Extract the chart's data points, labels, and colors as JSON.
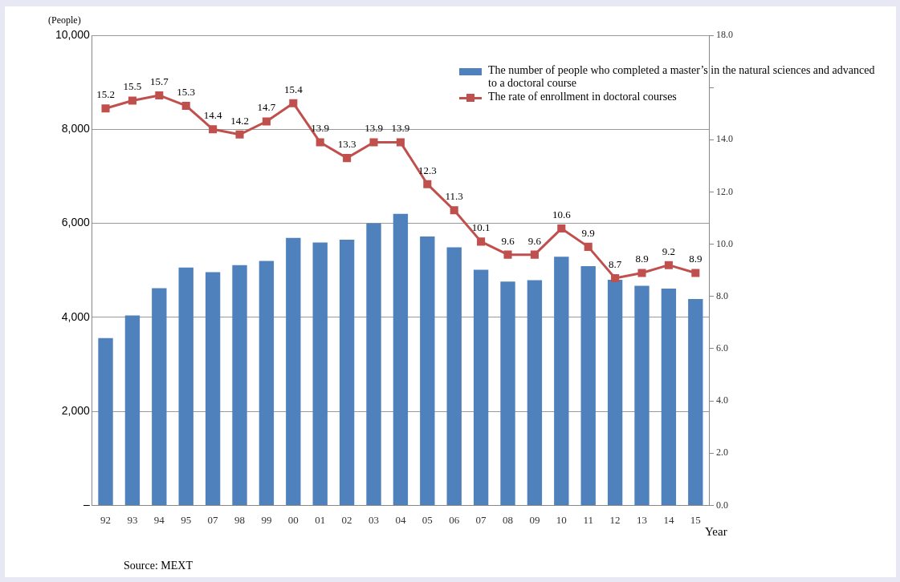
{
  "chart_data": {
    "type": "bar",
    "ylabel": "(People)",
    "xlabel": "Year",
    "categories": [
      "92",
      "93",
      "94",
      "95",
      "07",
      "98",
      "99",
      "00",
      "01",
      "02",
      "03",
      "04",
      "05",
      "06",
      "07",
      "08",
      "09",
      "10",
      "11",
      "12",
      "13",
      "14",
      "15"
    ],
    "series": [
      {
        "name": "The number of people who completed a master’s in the natural sciences and advanced to a doctoral course",
        "color": "#4f81bd",
        "values": [
          3560,
          4040,
          4620,
          5060,
          4960,
          5110,
          5200,
          5690,
          5590,
          5650,
          6000,
          6200,
          5720,
          5490,
          5010,
          4760,
          4790,
          5290,
          5090,
          4800,
          4670,
          4610,
          4390
        ]
      },
      {
        "name": "The rate of enrollment in doctoral courses",
        "type": "line",
        "axis": "y2",
        "color": "#c0504d",
        "marker": "square",
        "data_labels": true,
        "values": [
          15.2,
          15.5,
          15.7,
          15.3,
          14.4,
          14.2,
          14.7,
          15.4,
          13.9,
          13.3,
          13.9,
          13.9,
          12.3,
          11.3,
          10.1,
          9.6,
          9.6,
          10.6,
          9.9,
          8.7,
          8.9,
          9.2,
          8.9
        ]
      }
    ],
    "ylim": [
      0,
      10000
    ],
    "yticks": [
      {
        "value": 0,
        "label": "–"
      },
      {
        "value": 2000,
        "label": "2,000"
      },
      {
        "value": 4000,
        "label": "4,000"
      },
      {
        "value": 6000,
        "label": "6,000"
      },
      {
        "value": 8000,
        "label": "8,000"
      },
      {
        "value": 10000,
        "label": "10,000"
      }
    ],
    "y2lim": [
      0,
      18
    ],
    "y2ticks": [
      {
        "value": 0,
        "label": "0.0"
      },
      {
        "value": 2,
        "label": "2.0"
      },
      {
        "value": 4,
        "label": "4.0"
      },
      {
        "value": 6,
        "label": "6.0"
      },
      {
        "value": 8,
        "label": "8.0"
      },
      {
        "value": 10,
        "label": "10.0"
      },
      {
        "value": 12,
        "label": "12.0"
      },
      {
        "value": 14,
        "label": "14.0"
      },
      {
        "value": 16,
        "label": null
      },
      {
        "value": 18,
        "label": "18.0"
      }
    ],
    "grid": "y",
    "legend": "top right",
    "annotations": [
      "Source: MEXT"
    ]
  }
}
